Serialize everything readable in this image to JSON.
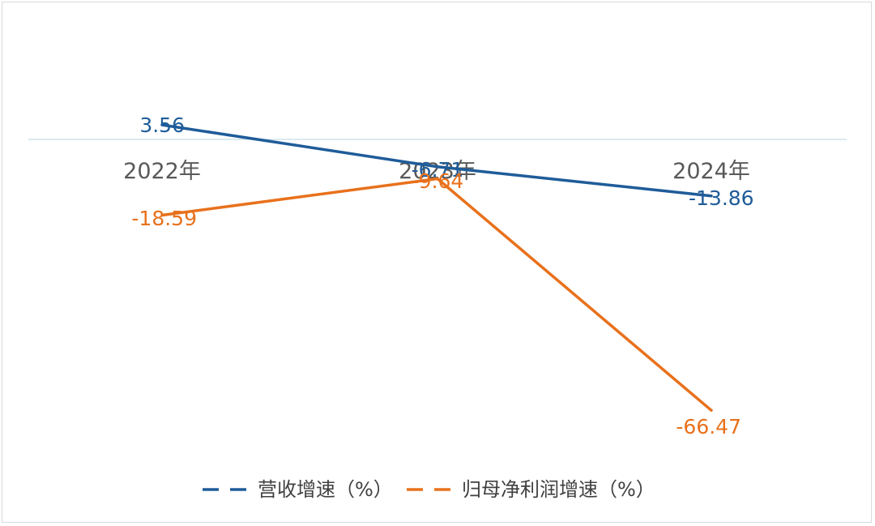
{
  "chart_data": {
    "type": "line",
    "title": "",
    "xlabel": "",
    "ylabel": "",
    "categories": [
      "2022年",
      "2023年",
      "2024年"
    ],
    "ylim": [
      -70,
      5
    ],
    "grid": false,
    "legend_position": "bottom",
    "series": [
      {
        "name": "营收增速（%）",
        "values": [
          3.56,
          -6.71,
          -13.86
        ],
        "labels": [
          "3.56",
          "-6.71",
          "-13.86"
        ],
        "color": "#1f5c99",
        "line_style": "solid",
        "legend_style": "dashed"
      },
      {
        "name": "归母净利润增速（%）",
        "values": [
          -18.59,
          -9.64,
          -66.47
        ],
        "labels": [
          "-18.59",
          "-9.64",
          "-66.47"
        ],
        "color": "#e8711c",
        "line_style": "solid",
        "legend_style": "dashed"
      }
    ]
  }
}
